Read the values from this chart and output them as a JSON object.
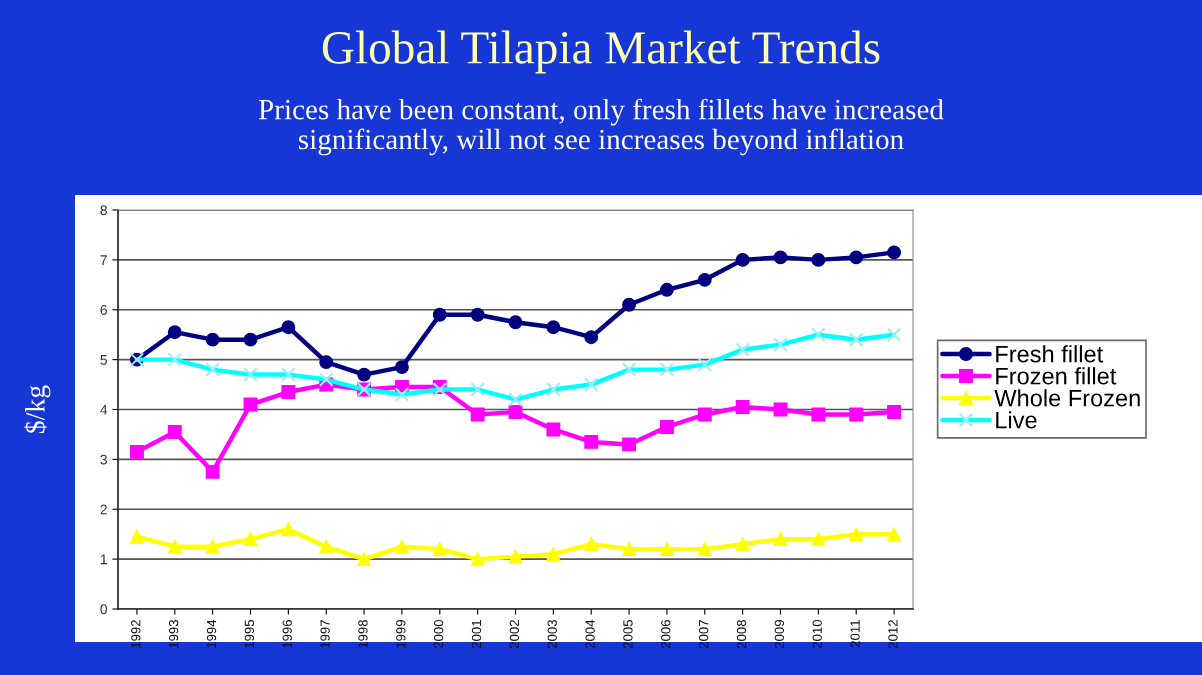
{
  "chart_data": {
    "type": "line",
    "title": "Global Tilapia Market Trends",
    "subtitle": "Prices have been constant, only fresh fillets have increased\nsignificantly, will not see increases beyond inflation",
    "ylabel": "$/kg",
    "categories": [
      "1992",
      "1993",
      "1994",
      "1995",
      "1996",
      "1997",
      "1998",
      "1999",
      "2000",
      "2001",
      "2002",
      "2003",
      "2004",
      "2005",
      "2006",
      "2007",
      "2008",
      "2009",
      "2010",
      "2011",
      "2012"
    ],
    "series": [
      {
        "name": "Fresh fillet",
        "color": "#000080",
        "marker": "circle",
        "values": [
          5.0,
          5.55,
          5.4,
          5.4,
          5.65,
          4.95,
          4.7,
          4.85,
          5.9,
          5.9,
          5.75,
          5.65,
          5.45,
          6.1,
          6.4,
          6.6,
          7.0,
          7.05,
          7.0,
          7.05,
          7.15
        ]
      },
      {
        "name": "Frozen fillet",
        "color": "#ff00ff",
        "marker": "square",
        "values": [
          3.15,
          3.55,
          2.75,
          4.1,
          4.35,
          4.5,
          4.4,
          4.45,
          4.45,
          3.9,
          3.95,
          3.6,
          3.35,
          3.3,
          3.65,
          3.9,
          4.05,
          4.0,
          3.9,
          3.9,
          3.95
        ]
      },
      {
        "name": "Whole Frozen",
        "color": "#ffff00",
        "marker": "triangle",
        "values": [
          1.45,
          1.25,
          1.25,
          1.4,
          1.6,
          1.25,
          1.0,
          1.25,
          1.2,
          1.0,
          1.05,
          1.1,
          1.3,
          1.2,
          1.2,
          1.2,
          1.3,
          1.4,
          1.4,
          1.5,
          1.5
        ]
      },
      {
        "name": "Live",
        "color": "#00ffff",
        "marker": "cross",
        "values": [
          5.0,
          5.0,
          4.8,
          4.7,
          4.7,
          4.6,
          4.4,
          4.3,
          4.4,
          4.4,
          4.2,
          4.4,
          4.5,
          4.8,
          4.8,
          4.9,
          5.2,
          5.3,
          5.5,
          5.4,
          5.5
        ]
      }
    ],
    "ylim": [
      0,
      8
    ],
    "yticks": [
      0,
      1,
      2,
      3,
      4,
      5,
      6,
      7,
      8
    ],
    "grid": "y",
    "legend": "right",
    "line_style": "solid"
  }
}
